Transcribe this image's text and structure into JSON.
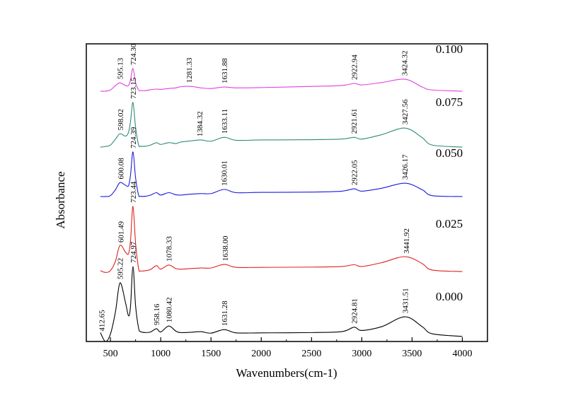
{
  "chart_data": {
    "type": "line",
    "title": "",
    "xlabel": "Wavenumbers(cm-1)",
    "ylabel": "Absorbance",
    "xlim": [
      260,
      4250
    ],
    "ylim": [
      0,
      1
    ],
    "xticks": [
      500,
      1000,
      1500,
      2000,
      2500,
      3000,
      3500,
      4000
    ],
    "yticks_shown": false,
    "grid": false,
    "legend": "labels at right end of each trace",
    "x": [
      400,
      450,
      500,
      550,
      595,
      650,
      680,
      700,
      724,
      750,
      780,
      800,
      850,
      900,
      958,
      1000,
      1080,
      1150,
      1200,
      1300,
      1400,
      1500,
      1631,
      1750,
      2000,
      2500,
      2800,
      2924,
      3000,
      3200,
      3430,
      3600,
      3700,
      4000
    ],
    "series": [
      {
        "name": "0.000",
        "color": "#000000",
        "values": [
          0.03,
          0.0,
          0.025,
          0.1,
          0.197,
          0.13,
          0.086,
          0.12,
          0.252,
          0.12,
          0.045,
          0.033,
          0.03,
          0.032,
          0.043,
          0.032,
          0.052,
          0.035,
          0.03,
          0.031,
          0.033,
          0.028,
          0.04,
          0.029,
          0.029,
          0.03,
          0.033,
          0.048,
          0.037,
          0.05,
          0.083,
          0.05,
          0.026,
          0.017
        ],
        "peaks": [
          {
            "x": 412.65,
            "label": "412.65"
          },
          {
            "x": 595.22,
            "label": "595.22"
          },
          {
            "x": 724.97,
            "label": "724.97"
          },
          {
            "x": 958.16,
            "label": "958.16"
          },
          {
            "x": 1080.42,
            "label": "1080.42"
          },
          {
            "x": 1631.28,
            "label": "1631.28"
          },
          {
            "x": 2924.81,
            "label": "2924.81"
          },
          {
            "x": 3431.51,
            "label": "3431.51"
          }
        ]
      },
      {
        "name": "0.025",
        "color": "#e02020",
        "values": [
          0.238,
          0.232,
          0.238,
          0.27,
          0.323,
          0.3,
          0.295,
          0.34,
          0.454,
          0.33,
          0.245,
          0.237,
          0.238,
          0.242,
          0.255,
          0.243,
          0.257,
          0.245,
          0.243,
          0.245,
          0.247,
          0.247,
          0.259,
          0.249,
          0.249,
          0.25,
          0.252,
          0.258,
          0.252,
          0.265,
          0.285,
          0.262,
          0.24,
          0.235
        ],
        "peaks": [
          {
            "x": 601.49,
            "label": "601.49"
          },
          {
            "x": 723.44,
            "label": "723.44"
          },
          {
            "x": 1078.33,
            "label": "1078.33"
          },
          {
            "x": 1638.0,
            "label": "1638.00"
          },
          {
            "x": 3441.92,
            "label": "3441.92"
          }
        ]
      },
      {
        "name": "0.050",
        "color": "#1a1ae0",
        "values": [
          0.487,
          0.487,
          0.49,
          0.51,
          0.534,
          0.525,
          0.523,
          0.56,
          0.637,
          0.55,
          0.492,
          0.488,
          0.488,
          0.492,
          0.5,
          0.492,
          0.5,
          0.493,
          0.492,
          0.495,
          0.497,
          0.497,
          0.511,
          0.5,
          0.501,
          0.502,
          0.505,
          0.513,
          0.505,
          0.515,
          0.532,
          0.51,
          0.49,
          0.487
        ],
        "peaks": [
          {
            "x": 600.08,
            "label": "600.08"
          },
          {
            "x": 724.39,
            "label": "724.39"
          },
          {
            "x": 1630.01,
            "label": "1630.01"
          },
          {
            "x": 2922.05,
            "label": "2922.05"
          },
          {
            "x": 3426.17,
            "label": "3426.17"
          }
        ]
      },
      {
        "name": "0.075",
        "color": "#2e8b7a",
        "values": [
          0.653,
          0.655,
          0.66,
          0.68,
          0.698,
          0.69,
          0.703,
          0.74,
          0.803,
          0.72,
          0.66,
          0.656,
          0.656,
          0.66,
          0.668,
          0.662,
          0.668,
          0.665,
          0.67,
          0.674,
          0.677,
          0.673,
          0.686,
          0.676,
          0.677,
          0.678,
          0.68,
          0.686,
          0.68,
          0.695,
          0.717,
          0.685,
          0.66,
          0.653
        ],
        "peaks": [
          {
            "x": 598.02,
            "label": "598.02"
          },
          {
            "x": 723.15,
            "label": "723.15"
          },
          {
            "x": 1384.32,
            "label": "1384.32"
          },
          {
            "x": 1633.11,
            "label": "1633.11"
          },
          {
            "x": 2921.61,
            "label": "2921.61"
          },
          {
            "x": 3427.56,
            "label": "3427.56"
          }
        ]
      },
      {
        "name": "0.100",
        "color": "#e040e0",
        "values": [
          0.841,
          0.841,
          0.845,
          0.86,
          0.869,
          0.86,
          0.86,
          0.88,
          0.917,
          0.87,
          0.845,
          0.843,
          0.843,
          0.846,
          0.848,
          0.847,
          0.85,
          0.852,
          0.856,
          0.857,
          0.852,
          0.85,
          0.855,
          0.852,
          0.853,
          0.857,
          0.86,
          0.867,
          0.862,
          0.87,
          0.881,
          0.855,
          0.845,
          0.841
        ],
        "peaks": [
          {
            "x": 595.13,
            "label": "595.13"
          },
          {
            "x": 724.3,
            "label": "724.30"
          },
          {
            "x": 1281.33,
            "label": "1281.33"
          },
          {
            "x": 1631.88,
            "label": "1631.88"
          },
          {
            "x": 2922.94,
            "label": "2922.94"
          },
          {
            "x": 3424.32,
            "label": "3424.32"
          }
        ]
      }
    ]
  }
}
